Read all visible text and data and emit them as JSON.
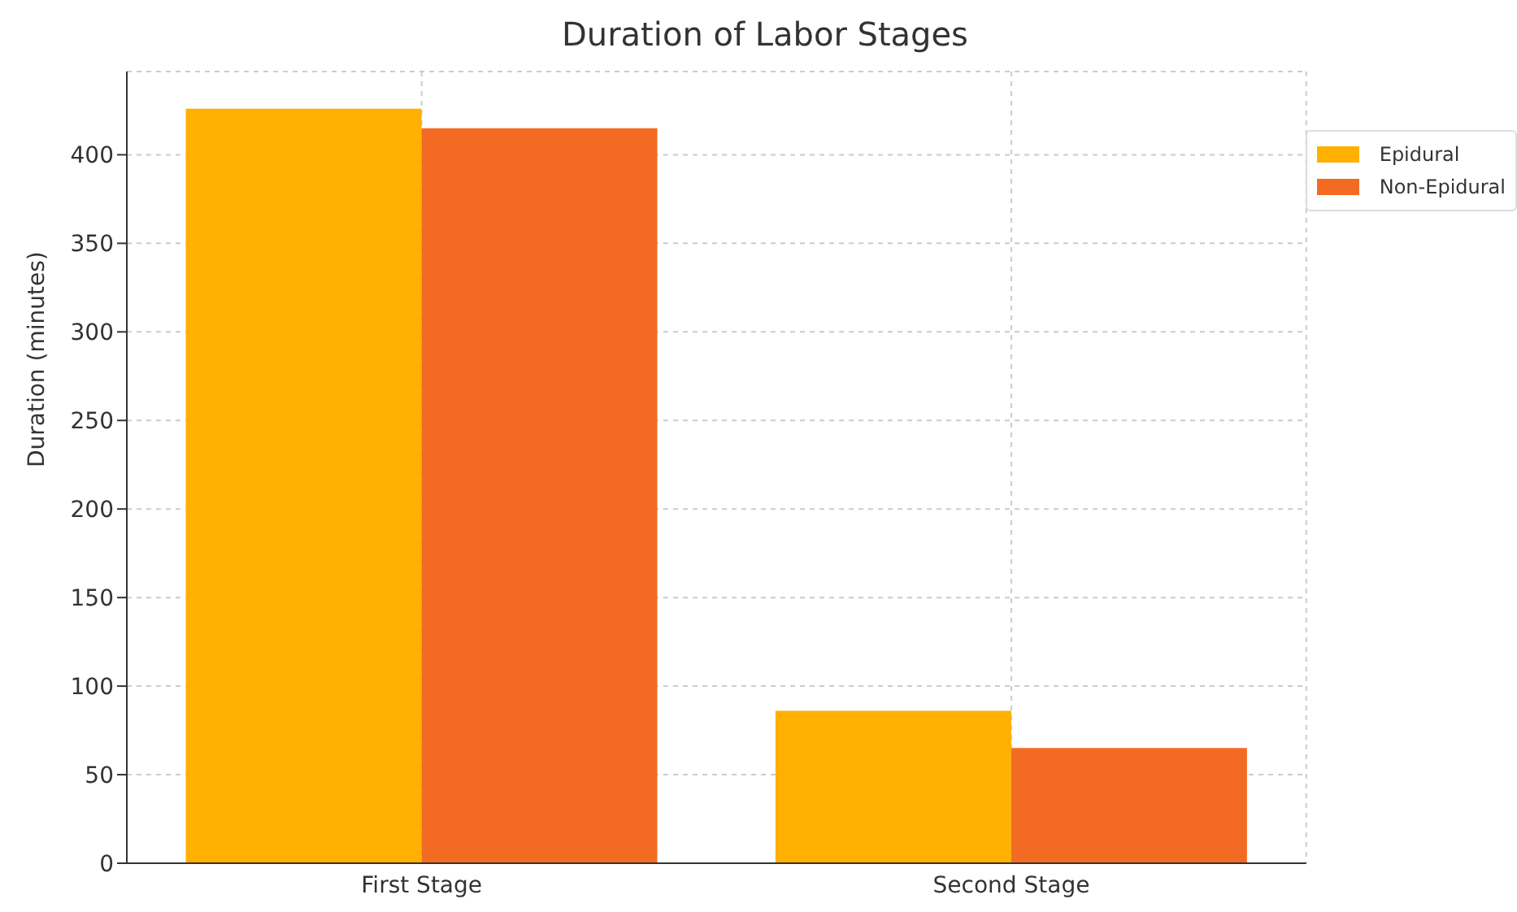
{
  "chart_data": {
    "type": "bar",
    "title": "Duration of Labor Stages",
    "ylabel": "Duration (minutes)",
    "categories": [
      "First Stage",
      "Second Stage"
    ],
    "series": [
      {
        "name": "Epidural",
        "color": "#ffb000",
        "values": [
          426,
          86
        ]
      },
      {
        "name": "Non-Epidural",
        "color": "#f36b22",
        "values": [
          415,
          65
        ]
      }
    ],
    "ylim": [
      0,
      447
    ],
    "yticks": [
      0,
      50,
      100,
      150,
      200,
      250,
      300,
      350,
      400
    ],
    "grid": true,
    "legend": "top right"
  }
}
